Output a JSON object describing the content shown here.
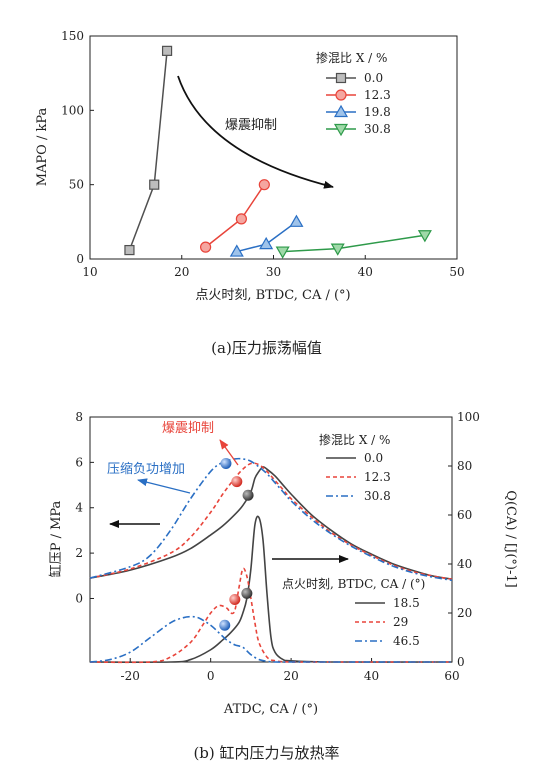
{
  "chart_data": [
    {
      "type": "scatter",
      "caption": "(a)压力振荡幅值",
      "xlabel": "点火时刻, BTDC, CA / (°)",
      "ylabel": "MAPO / kPa",
      "xlim": [
        10,
        50
      ],
      "ylim": [
        0,
        150
      ],
      "xticks": [
        "10",
        "20",
        "30",
        "40",
        "50"
      ],
      "yticks": [
        "0",
        "50",
        "100",
        "150"
      ],
      "legend_title": "掺混比 X / %",
      "legend_placement": "top-right",
      "annotation": "爆震抑制",
      "series": [
        {
          "name": "0.0",
          "color": "#505050",
          "marker": "square",
          "fill": "#bdbdbd",
          "x": [
            14.3,
            17.0,
            18.4
          ],
          "y": [
            6,
            50,
            140
          ]
        },
        {
          "name": "12.3",
          "color": "#e8443a",
          "marker": "circle",
          "fill": "#f5a6a0",
          "x": [
            22.6,
            26.5,
            29.0
          ],
          "y": [
            8,
            27,
            50
          ]
        },
        {
          "name": "19.8",
          "color": "#2a6fc4",
          "marker": "triangle-up",
          "fill": "#9fc3ea",
          "x": [
            26.0,
            29.2,
            32.5
          ],
          "y": [
            5,
            10,
            25
          ]
        },
        {
          "name": "30.8",
          "color": "#2e9a4a",
          "marker": "triangle-down",
          "fill": "#9fd9a8",
          "x": [
            31.0,
            37.0,
            46.5
          ],
          "y": [
            5,
            7,
            16
          ]
        }
      ]
    },
    {
      "type": "line",
      "caption": "(b)   缸内压力与放热率",
      "xlabel": "ATDC, CA / (°)",
      "ylabel_left": "缸压P / MPa",
      "ylabel_right": "Q(CA) / [J(°)-1]",
      "xlim": [
        -30,
        60
      ],
      "ylim_left": [
        -2.8,
        8
      ],
      "ylim_right": [
        0,
        100
      ],
      "xticks": [
        "-20",
        "0",
        "20",
        "40",
        "60"
      ],
      "yticks_left": [
        "0",
        "2",
        "4",
        "6",
        "8"
      ],
      "yticks_right": [
        "0",
        "20",
        "40",
        "60",
        "80",
        "100"
      ],
      "legend1_title": "掺混比 X / %",
      "legend1": [
        "0.0",
        "12.3",
        "30.8"
      ],
      "legend2_title": "点火时刻, BTDC, CA / (°)",
      "legend2": [
        "18.5",
        "29",
        "46.5"
      ],
      "annotations": {
        "knock": "爆震抑制",
        "work": "压缩负功增加"
      },
      "pressure_series": [
        {
          "name": "0.0",
          "color": "#444444",
          "dash": "solid",
          "x": [
            -30,
            -20,
            -10,
            -5,
            0,
            3,
            6,
            8,
            10,
            11,
            12,
            13,
            14,
            16,
            18,
            20,
            25,
            30,
            35,
            40,
            45,
            50,
            55,
            60
          ],
          "y": [
            0.9,
            1.25,
            1.8,
            2.2,
            2.8,
            3.2,
            3.7,
            4.1,
            4.7,
            5.3,
            5.6,
            5.8,
            5.7,
            5.4,
            5.0,
            4.6,
            3.7,
            3.0,
            2.4,
            1.95,
            1.55,
            1.25,
            1.0,
            0.85
          ]
        },
        {
          "name": "12.3",
          "color": "#e8443a",
          "dash": "4,3",
          "x": [
            -30,
            -20,
            -10,
            -5,
            0,
            3,
            6,
            8,
            10,
            12,
            14,
            16,
            18,
            20,
            25,
            30,
            35,
            40,
            45,
            50,
            55,
            60
          ],
          "y": [
            0.9,
            1.3,
            2.0,
            2.7,
            3.8,
            4.6,
            5.3,
            5.7,
            5.95,
            5.9,
            5.6,
            5.2,
            4.8,
            4.4,
            3.6,
            2.9,
            2.35,
            1.9,
            1.5,
            1.2,
            1.0,
            0.85
          ]
        },
        {
          "name": "30.8",
          "color": "#2a6fc4",
          "dash": "7,3,2,3",
          "x": [
            -30,
            -20,
            -15,
            -10,
            -5,
            0,
            3,
            6,
            8,
            10,
            12,
            14,
            16,
            18,
            20,
            25,
            30,
            35,
            40,
            45,
            50,
            55,
            60
          ],
          "y": [
            0.9,
            1.4,
            1.9,
            3.0,
            4.4,
            5.6,
            6.0,
            6.15,
            6.15,
            6.05,
            5.8,
            5.5,
            5.1,
            4.7,
            4.3,
            3.5,
            2.85,
            2.3,
            1.85,
            1.45,
            1.15,
            0.95,
            0.8
          ]
        }
      ],
      "heat_release_series": [
        {
          "name": "18.5",
          "color": "#444444",
          "dash": "solid",
          "x": [
            -30,
            -10,
            -5,
            0,
            3,
            5,
            7,
            8,
            9,
            10,
            11,
            12,
            13,
            14,
            15,
            16,
            18,
            20,
            30,
            60
          ],
          "y": [
            0,
            0,
            1,
            5,
            9,
            12,
            16,
            20,
            26,
            38,
            56,
            59,
            50,
            28,
            10,
            4,
            1,
            0.5,
            0,
            0
          ]
        },
        {
          "name": "29",
          "color": "#e8443a",
          "dash": "4,3",
          "x": [
            -30,
            -15,
            -10,
            -5,
            -2,
            0,
            2,
            4,
            5,
            6,
            7,
            8,
            9,
            10,
            11,
            12,
            14,
            16,
            20,
            30,
            60
          ],
          "y": [
            0,
            0,
            2,
            8,
            15,
            20,
            23,
            22,
            20,
            21,
            30,
            38,
            35,
            26,
            16,
            8,
            2,
            0.5,
            0,
            0,
            0
          ]
        },
        {
          "name": "46.5",
          "color": "#2a6fc4",
          "dash": "7,3,2,3",
          "x": [
            -30,
            -25,
            -20,
            -15,
            -10,
            -7,
            -5,
            -3,
            0,
            2,
            4,
            6,
            8,
            10,
            12,
            14,
            16,
            20,
            30,
            60
          ],
          "y": [
            0,
            1,
            4,
            10,
            16,
            18,
            18.5,
            18,
            15,
            12,
            9,
            7,
            6,
            3,
            1,
            0.3,
            0,
            0,
            0,
            0
          ]
        }
      ],
      "marker_points": [
        {
          "color": "#444444",
          "x": 9.3,
          "y": 4.55
        },
        {
          "color": "#e8443a",
          "x": 6.5,
          "y": 5.15
        },
        {
          "color": "#2a6fc4",
          "x": 3.8,
          "y": 5.95
        },
        {
          "color": "#444444",
          "x": 9.0,
          "y2": 28
        },
        {
          "color": "#e8443a",
          "x": 6.0,
          "y2": 25.5
        },
        {
          "color": "#2a6fc4",
          "x": 3.5,
          "y2": 15
        }
      ]
    }
  ]
}
